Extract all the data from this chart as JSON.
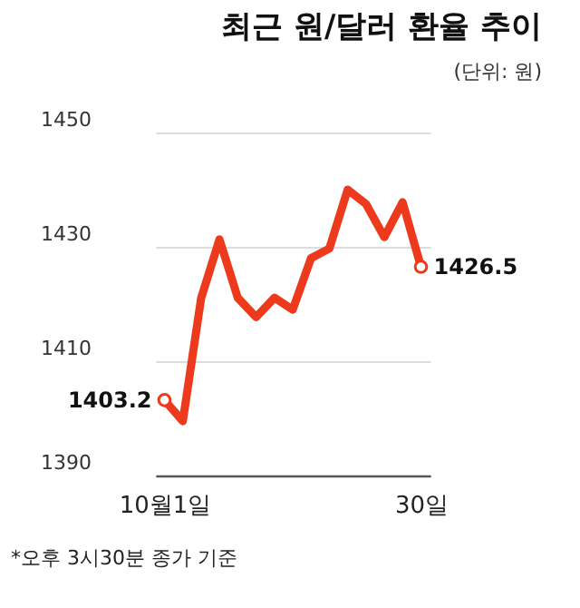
{
  "chart_data": {
    "type": "line",
    "title": "최근 원/달러 환율 추이",
    "subtitle": "(단위: 원)",
    "categories": [
      "10월1일",
      null,
      null,
      null,
      null,
      null,
      null,
      null,
      null,
      null,
      null,
      null,
      null,
      null,
      "30일"
    ],
    "series": [
      {
        "color": "#ee3a1c",
        "values": [
          1403.2,
          1399.5,
          1421.0,
          1431.3,
          1421.1,
          1417.7,
          1421.1,
          1419.0,
          1428.0,
          1429.7,
          1440.0,
          1437.5,
          1431.7,
          1437.8,
          1426.5
        ],
        "value_labels": [
          "1403.2",
          null,
          null,
          null,
          null,
          null,
          null,
          null,
          null,
          null,
          null,
          null,
          null,
          null,
          "1426.5"
        ]
      }
    ],
    "ylim": [
      1390,
      1450
    ],
    "yticks": [
      1390,
      1410,
      1430,
      1450
    ],
    "grid": "y",
    "line_style": "solid",
    "annotations": [
      "*오후 3시30분 종가 기준"
    ]
  }
}
